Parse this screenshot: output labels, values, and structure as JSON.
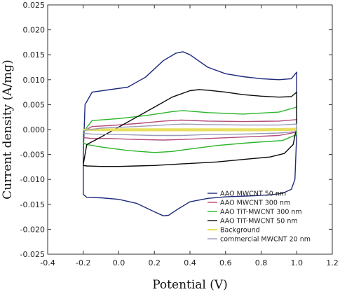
{
  "chart_data": {
    "type": "line",
    "xlabel": "Potential (V)",
    "ylabel": "Current density (A/mg)",
    "xlim": [
      -0.4,
      1.2
    ],
    "ylim": [
      -0.025,
      0.025
    ],
    "xticks": [
      "-0.4",
      "-0.2",
      "0.0",
      "0.2",
      "0.4",
      "0.6",
      "0.8",
      "1.0",
      "1.2"
    ],
    "yticks": [
      "-0.025",
      "-0.020",
      "-0.015",
      "-0.010",
      "-0.005",
      "0.000",
      "0.005",
      "0.010",
      "0.015",
      "0.020",
      "0.025"
    ],
    "xtick_values": [
      -0.4,
      -0.2,
      0.0,
      0.2,
      0.4,
      0.6,
      0.8,
      1.0,
      1.2
    ],
    "ytick_values": [
      -0.025,
      -0.02,
      -0.015,
      -0.01,
      -0.005,
      0.0,
      0.005,
      0.01,
      0.015,
      0.02,
      0.025
    ],
    "grid": false,
    "legend_position": "bottom-right",
    "series": [
      {
        "name": "AAO MWCNT 50 nm",
        "color": "#1f2a7a",
        "x": [
          -0.2,
          -0.19,
          -0.15,
          -0.05,
          0.05,
          0.15,
          0.25,
          0.32,
          0.36,
          0.4,
          0.5,
          0.6,
          0.7,
          0.8,
          0.9,
          0.97,
          1.0,
          1.0,
          0.99,
          0.97,
          0.92,
          0.85,
          0.75,
          0.6,
          0.5,
          0.4,
          0.33,
          0.28,
          0.25,
          0.2,
          0.1,
          0.0,
          -0.1,
          -0.18,
          -0.2,
          -0.2
        ],
        "y": [
          -0.005,
          0.005,
          0.0075,
          0.008,
          0.0085,
          0.0105,
          0.0138,
          0.0153,
          0.0156,
          0.015,
          0.0125,
          0.0112,
          0.0106,
          0.0102,
          0.01,
          0.0102,
          0.0115,
          -0.001,
          -0.01,
          -0.012,
          -0.0128,
          -0.0131,
          -0.0133,
          -0.0135,
          -0.0138,
          -0.0145,
          -0.016,
          -0.0172,
          -0.0173,
          -0.0165,
          -0.0148,
          -0.014,
          -0.0137,
          -0.0136,
          -0.013,
          -0.005
        ]
      },
      {
        "name": "AAO MWCNT 300 nm",
        "color": "#b34a7a",
        "x": [
          -0.2,
          -0.15,
          -0.05,
          0.1,
          0.25,
          0.35,
          0.5,
          0.7,
          0.9,
          1.0,
          1.0,
          0.9,
          0.7,
          0.5,
          0.35,
          0.25,
          0.1,
          -0.05,
          -0.15,
          -0.2,
          -0.2
        ],
        "y": [
          -0.0003,
          0.0006,
          0.0008,
          0.0012,
          0.0017,
          0.0019,
          0.0017,
          0.0016,
          0.0017,
          0.002,
          -0.0005,
          -0.0012,
          -0.0015,
          -0.0018,
          -0.002,
          -0.0021,
          -0.002,
          -0.0018,
          -0.0018,
          -0.0016,
          -0.0003
        ]
      },
      {
        "name": "AAO TiT-MWCNT 300 nm",
        "color": "#2bb52b",
        "x": [
          -0.2,
          -0.15,
          0.0,
          0.15,
          0.3,
          0.36,
          0.5,
          0.7,
          0.9,
          1.0,
          1.0,
          0.92,
          0.75,
          0.55,
          0.4,
          0.3,
          0.2,
          0.05,
          -0.1,
          -0.18,
          -0.2,
          -0.2
        ],
        "y": [
          -0.0005,
          0.0018,
          0.0022,
          0.0028,
          0.0036,
          0.0038,
          0.0034,
          0.0031,
          0.0035,
          0.0045,
          -0.001,
          -0.0022,
          -0.0026,
          -0.0032,
          -0.0039,
          -0.0044,
          -0.0046,
          -0.0042,
          -0.0035,
          -0.003,
          -0.0027,
          -0.0005
        ]
      },
      {
        "name": "AAO TiT-MWCNT 50 nm",
        "color": "#0a0a0a",
        "x": [
          -0.2,
          -0.18,
          -0.1,
          0.0,
          0.1,
          0.2,
          0.3,
          0.4,
          0.45,
          0.5,
          0.6,
          0.7,
          0.8,
          0.9,
          0.97,
          1.0,
          1.0,
          0.98,
          0.93,
          0.85,
          0.7,
          0.55,
          0.4,
          0.3,
          0.2,
          0.1,
          0.0,
          -0.1,
          -0.18,
          -0.2,
          -0.2
        ],
        "y": [
          -0.007,
          -0.003,
          -0.0015,
          0.0005,
          0.0025,
          0.0045,
          0.0065,
          0.0078,
          0.008,
          0.0079,
          0.0075,
          0.007,
          0.0067,
          0.0065,
          0.0066,
          0.0075,
          0.0005,
          -0.003,
          -0.0048,
          -0.0055,
          -0.006,
          -0.0065,
          -0.0068,
          -0.007,
          -0.0072,
          -0.0073,
          -0.0074,
          -0.0074,
          -0.0073,
          -0.0072,
          -0.007
        ]
      },
      {
        "name": "Background",
        "color": "#e8e060",
        "x": [
          -0.2,
          0.0,
          0.2,
          0.4,
          0.6,
          0.8,
          1.0,
          1.0,
          0.8,
          0.6,
          0.4,
          0.2,
          0.0,
          -0.2,
          -0.2
        ],
        "y": [
          0.0,
          0.0001,
          0.0001,
          0.0001,
          0.0001,
          0.0001,
          0.0002,
          -0.0001,
          -0.0002,
          -0.0002,
          -0.0002,
          -0.0002,
          -0.0002,
          -0.0001,
          0.0
        ]
      },
      {
        "name": "commercial MWCNT 20 nm",
        "color": "#9a9ab8",
        "x": [
          -0.2,
          -0.1,
          0.1,
          0.3,
          0.36,
          0.5,
          0.7,
          0.9,
          1.0,
          1.0,
          0.9,
          0.7,
          0.5,
          0.35,
          0.2,
          0.0,
          -0.15,
          -0.2,
          -0.2
        ],
        "y": [
          -0.0002,
          0.0003,
          0.0006,
          0.001,
          0.0011,
          0.001,
          0.0009,
          0.0009,
          0.0011,
          -0.0004,
          -0.0007,
          -0.0009,
          -0.001,
          -0.0012,
          -0.0012,
          -0.001,
          -0.0009,
          -0.0008,
          -0.0002
        ]
      }
    ]
  }
}
